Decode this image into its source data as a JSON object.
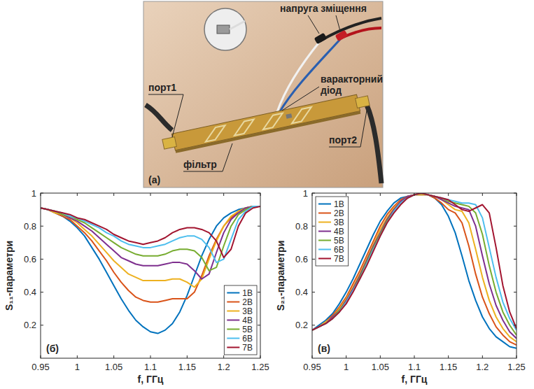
{
  "photo": {
    "panel_label": "(а)",
    "labels": [
      "напруга зміщення",
      "порт1",
      "фільтр",
      "варакторний діод",
      "порт2"
    ]
  },
  "chart_data": [
    {
      "type": "line",
      "annotations": [
        "(б)"
      ],
      "x_label": "f, ГГц",
      "y_label": "S₁₁-параметри",
      "x": [
        0.95,
        0.96,
        0.97,
        0.98,
        0.99,
        1.0,
        1.01,
        1.02,
        1.03,
        1.04,
        1.05,
        1.06,
        1.07,
        1.08,
        1.09,
        1.1,
        1.11,
        1.12,
        1.13,
        1.14,
        1.15,
        1.16,
        1.17,
        1.18,
        1.19,
        1.2,
        1.21,
        1.22,
        1.23,
        1.24,
        1.25
      ],
      "xlim": [
        0.95,
        1.25
      ],
      "xticks": [
        0.95,
        1,
        1.05,
        1.1,
        1.15,
        1.2,
        1.25
      ],
      "ylim": [
        0,
        1
      ],
      "yticks": [
        0.2,
        0.4,
        0.6,
        0.8,
        1
      ],
      "grid": false,
      "legend": "southeast",
      "series": [
        {
          "name": "1В",
          "color": "#0072bd",
          "values": [
            0.91,
            0.9,
            0.88,
            0.86,
            0.83,
            0.79,
            0.74,
            0.67,
            0.6,
            0.52,
            0.44,
            0.36,
            0.29,
            0.23,
            0.19,
            0.16,
            0.15,
            0.17,
            0.21,
            0.28,
            0.38,
            0.5,
            0.62,
            0.72,
            0.8,
            0.85,
            0.88,
            0.9,
            0.91,
            0.92,
            0.92
          ]
        },
        {
          "name": "2В",
          "color": "#d95319",
          "values": [
            0.91,
            0.9,
            0.88,
            0.86,
            0.84,
            0.8,
            0.76,
            0.71,
            0.65,
            0.59,
            0.52,
            0.46,
            0.41,
            0.37,
            0.35,
            0.34,
            0.34,
            0.35,
            0.36,
            0.36,
            0.36,
            0.4,
            0.5,
            0.62,
            0.72,
            0.8,
            0.85,
            0.89,
            0.91,
            0.92,
            0.92
          ]
        },
        {
          "name": "3В",
          "color": "#edb120",
          "values": [
            0.91,
            0.9,
            0.88,
            0.87,
            0.85,
            0.82,
            0.78,
            0.74,
            0.69,
            0.64,
            0.59,
            0.55,
            0.51,
            0.49,
            0.47,
            0.47,
            0.47,
            0.47,
            0.48,
            0.48,
            0.46,
            0.43,
            0.48,
            0.6,
            0.71,
            0.8,
            0.86,
            0.89,
            0.91,
            0.92,
            0.92
          ]
        },
        {
          "name": "4В",
          "color": "#7e2f8e",
          "values": [
            0.91,
            0.9,
            0.89,
            0.87,
            0.85,
            0.83,
            0.8,
            0.77,
            0.73,
            0.69,
            0.65,
            0.61,
            0.59,
            0.57,
            0.56,
            0.56,
            0.56,
            0.57,
            0.58,
            0.58,
            0.57,
            0.53,
            0.48,
            0.51,
            0.64,
            0.76,
            0.84,
            0.88,
            0.91,
            0.92,
            0.92
          ]
        },
        {
          "name": "5В",
          "color": "#77ac30",
          "values": [
            0.91,
            0.9,
            0.89,
            0.87,
            0.86,
            0.84,
            0.82,
            0.79,
            0.76,
            0.73,
            0.7,
            0.67,
            0.65,
            0.63,
            0.62,
            0.62,
            0.62,
            0.63,
            0.65,
            0.66,
            0.66,
            0.65,
            0.61,
            0.53,
            0.55,
            0.68,
            0.8,
            0.87,
            0.9,
            0.92,
            0.92
          ]
        },
        {
          "name": "6В",
          "color": "#4dbeee",
          "values": [
            0.91,
            0.9,
            0.89,
            0.88,
            0.86,
            0.85,
            0.83,
            0.81,
            0.79,
            0.76,
            0.74,
            0.71,
            0.69,
            0.68,
            0.67,
            0.67,
            0.68,
            0.69,
            0.71,
            0.73,
            0.74,
            0.74,
            0.72,
            0.67,
            0.58,
            0.6,
            0.72,
            0.84,
            0.89,
            0.92,
            0.92
          ]
        },
        {
          "name": "7В",
          "color": "#a2142f",
          "values": [
            0.91,
            0.9,
            0.89,
            0.88,
            0.87,
            0.85,
            0.84,
            0.82,
            0.8,
            0.78,
            0.75,
            0.73,
            0.71,
            0.7,
            0.69,
            0.7,
            0.71,
            0.73,
            0.76,
            0.78,
            0.79,
            0.79,
            0.78,
            0.76,
            0.71,
            0.61,
            0.66,
            0.8,
            0.88,
            0.91,
            0.92
          ]
        }
      ]
    },
    {
      "type": "line",
      "annotations": [
        "(в)"
      ],
      "x_label": "f, ГГц",
      "y_label": "S₂₁-параметри",
      "x": [
        0.95,
        0.96,
        0.97,
        0.98,
        0.99,
        1.0,
        1.01,
        1.02,
        1.03,
        1.04,
        1.05,
        1.06,
        1.07,
        1.08,
        1.09,
        1.1,
        1.11,
        1.12,
        1.13,
        1.14,
        1.15,
        1.16,
        1.17,
        1.18,
        1.19,
        1.2,
        1.21,
        1.22,
        1.23,
        1.24,
        1.25
      ],
      "xlim": [
        0.95,
        1.25
      ],
      "xticks": [
        0.95,
        1,
        1.05,
        1.1,
        1.15,
        1.2,
        1.25
      ],
      "ylim": [
        0,
        1
      ],
      "yticks": [
        0.2,
        0.4,
        0.6,
        0.8,
        1
      ],
      "grid": false,
      "legend": "northwest",
      "series": [
        {
          "name": "1В",
          "color": "#0072bd",
          "values": [
            0.17,
            0.2,
            0.23,
            0.27,
            0.33,
            0.4,
            0.48,
            0.57,
            0.66,
            0.75,
            0.83,
            0.89,
            0.94,
            0.97,
            0.98,
            0.99,
            0.99,
            0.99,
            0.97,
            0.93,
            0.86,
            0.76,
            0.62,
            0.47,
            0.35,
            0.25,
            0.18,
            0.13,
            0.1,
            0.07,
            0.06
          ]
        },
        {
          "name": "2В",
          "color": "#d95319",
          "values": [
            0.17,
            0.19,
            0.22,
            0.26,
            0.31,
            0.37,
            0.45,
            0.53,
            0.62,
            0.71,
            0.8,
            0.87,
            0.92,
            0.96,
            0.98,
            0.99,
            0.99,
            0.99,
            0.97,
            0.94,
            0.9,
            0.88,
            0.82,
            0.68,
            0.51,
            0.37,
            0.27,
            0.19,
            0.14,
            0.1,
            0.08
          ]
        },
        {
          "name": "3В",
          "color": "#edb120",
          "values": [
            0.17,
            0.19,
            0.22,
            0.25,
            0.3,
            0.36,
            0.43,
            0.51,
            0.6,
            0.69,
            0.78,
            0.85,
            0.91,
            0.95,
            0.98,
            0.99,
            0.99,
            0.99,
            0.98,
            0.96,
            0.93,
            0.9,
            0.89,
            0.82,
            0.66,
            0.49,
            0.35,
            0.25,
            0.18,
            0.13,
            0.1
          ]
        },
        {
          "name": "4В",
          "color": "#7e2f8e",
          "values": [
            0.17,
            0.19,
            0.21,
            0.25,
            0.29,
            0.35,
            0.42,
            0.5,
            0.59,
            0.68,
            0.76,
            0.84,
            0.9,
            0.95,
            0.98,
            0.99,
            1.0,
            0.99,
            0.98,
            0.96,
            0.94,
            0.92,
            0.91,
            0.9,
            0.8,
            0.62,
            0.45,
            0.32,
            0.23,
            0.16,
            0.12
          ]
        },
        {
          "name": "5В",
          "color": "#77ac30",
          "values": [
            0.17,
            0.19,
            0.21,
            0.24,
            0.29,
            0.34,
            0.41,
            0.49,
            0.58,
            0.67,
            0.75,
            0.83,
            0.89,
            0.94,
            0.97,
            0.99,
            1.0,
            0.99,
            0.98,
            0.97,
            0.95,
            0.94,
            0.93,
            0.92,
            0.88,
            0.75,
            0.56,
            0.4,
            0.28,
            0.2,
            0.14
          ]
        },
        {
          "name": "6В",
          "color": "#4dbeee",
          "values": [
            0.17,
            0.19,
            0.21,
            0.24,
            0.28,
            0.34,
            0.41,
            0.48,
            0.57,
            0.66,
            0.74,
            0.82,
            0.89,
            0.94,
            0.97,
            0.99,
            1.0,
            0.99,
            0.98,
            0.97,
            0.96,
            0.95,
            0.94,
            0.94,
            0.93,
            0.85,
            0.67,
            0.49,
            0.34,
            0.24,
            0.17
          ]
        },
        {
          "name": "7В",
          "color": "#a2142f",
          "values": [
            0.17,
            0.19,
            0.21,
            0.24,
            0.28,
            0.33,
            0.4,
            0.48,
            0.56,
            0.65,
            0.74,
            0.82,
            0.88,
            0.93,
            0.97,
            0.99,
            1.0,
            0.99,
            0.98,
            0.97,
            0.96,
            0.93,
            0.9,
            0.89,
            0.91,
            0.93,
            0.88,
            0.67,
            0.44,
            0.28,
            0.18
          ]
        }
      ]
    }
  ]
}
